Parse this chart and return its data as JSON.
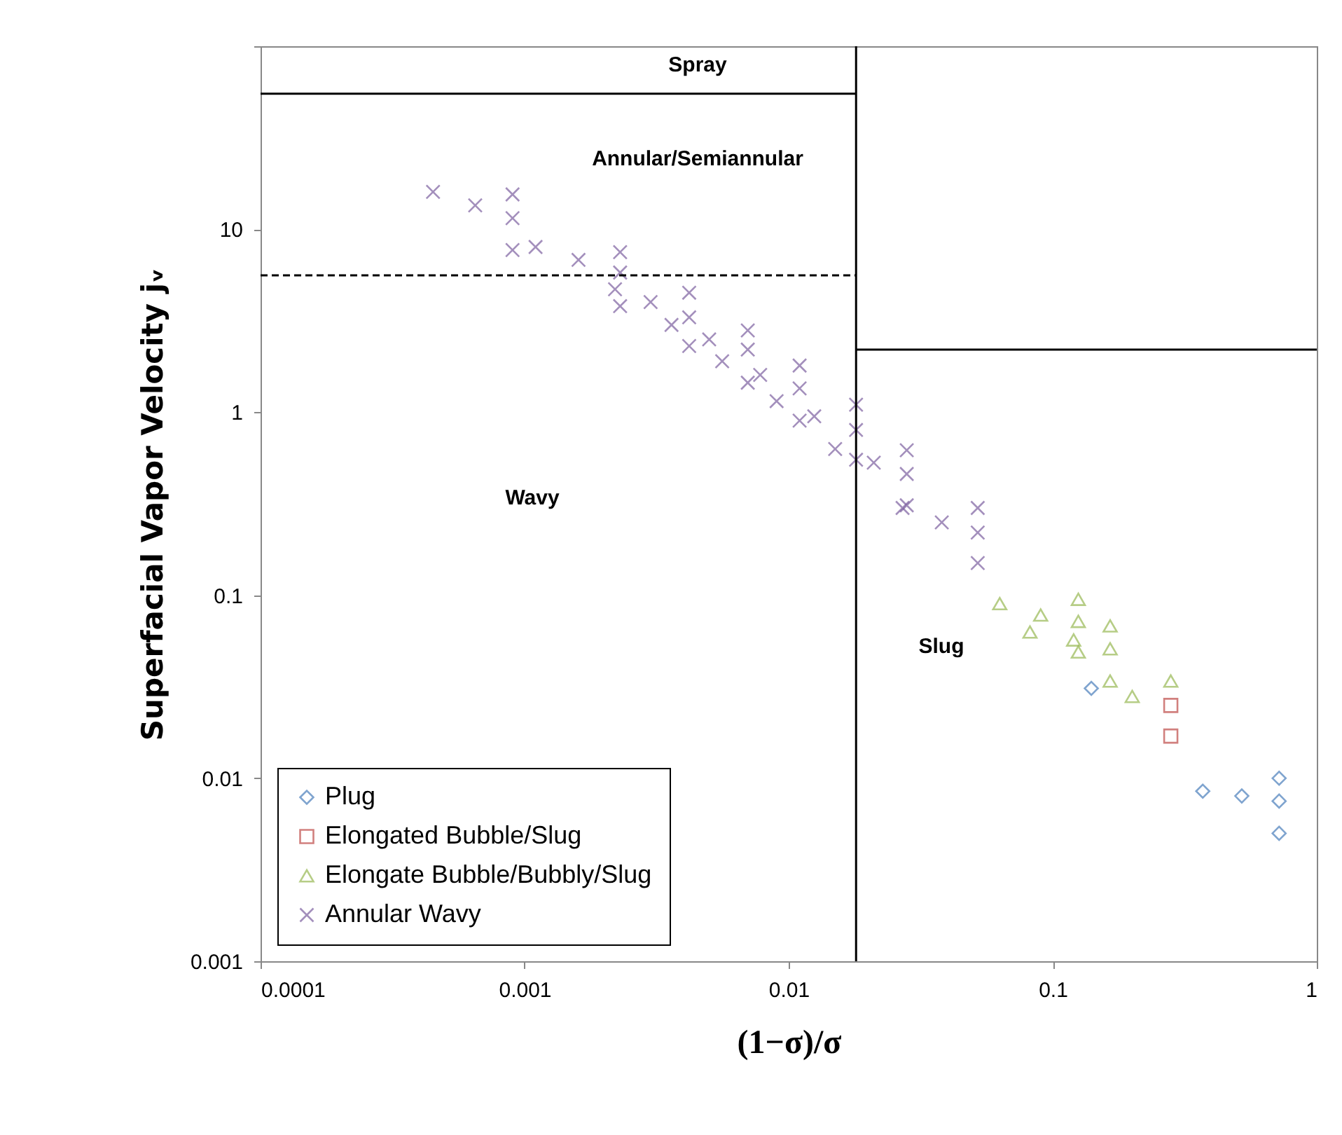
{
  "chart_data": {
    "type": "scatter",
    "xlabel": "(1−σ)/σ",
    "ylabel": "Superfacial Vapor Velocity jᵥ",
    "log": "xy",
    "xlim": [
      0.0001,
      1
    ],
    "xticks": [
      0.0001,
      0.001,
      0.01,
      0.1,
      1
    ],
    "ylim": [
      0.001,
      100
    ],
    "yticks": [
      0.001,
      0.01,
      0.1,
      1,
      10,
      {
        "value": 100,
        "label": null
      }
    ],
    "grid": false,
    "legend": "bottom left",
    "series": [
      {
        "name": "Plug",
        "color": "#4a7ebb",
        "marker": "diamond",
        "x": [
          0.14,
          0.37,
          0.52,
          0.72,
          0.72,
          0.72
        ],
        "values": [
          0.031,
          0.0085,
          0.008,
          0.01,
          0.0075,
          0.005
        ]
      },
      {
        "name": "Elongated Bubble/Slug",
        "color": "#be4b48",
        "marker": "square",
        "x": [
          0.28,
          0.28
        ],
        "values": [
          0.025,
          0.017
        ]
      },
      {
        "name": "Elongate Bubble/Bubbly/Slug",
        "color": "#98b954",
        "marker": "triangle",
        "x": [
          0.063,
          0.082,
          0.09,
          0.12,
          0.125,
          0.125,
          0.125,
          0.165,
          0.165,
          0.165,
          0.2,
          0.28
        ],
        "values": [
          0.09,
          0.063,
          0.078,
          0.057,
          0.095,
          0.072,
          0.049,
          0.068,
          0.051,
          0.034,
          0.028,
          0.034
        ]
      },
      {
        "name": "Annular Wavy",
        "color": "#7d60a0",
        "marker": "cross",
        "x": [
          0.00045,
          0.00065,
          0.0009,
          0.0009,
          0.0009,
          0.0011,
          0.0016,
          0.0022,
          0.0023,
          0.0023,
          0.0023,
          0.003,
          0.0036,
          0.0042,
          0.0042,
          0.0042,
          0.005,
          0.0056,
          0.007,
          0.007,
          0.007,
          0.0078,
          0.009,
          0.011,
          0.011,
          0.011,
          0.0125,
          0.015,
          0.018,
          0.018,
          0.018,
          0.021,
          0.027,
          0.028,
          0.028,
          0.028,
          0.038,
          0.052,
          0.052,
          0.052
        ],
        "values": [
          16,
          13.5,
          15.5,
          11.5,
          7.7,
          8,
          6.8,
          4.7,
          7.5,
          5.8,
          3.8,
          4,
          3,
          4.5,
          3.3,
          2.3,
          2.5,
          1.9,
          2.8,
          2.2,
          1.45,
          1.6,
          1.15,
          1.8,
          1.35,
          0.9,
          0.95,
          0.63,
          1.1,
          0.8,
          0.55,
          0.53,
          0.3,
          0.62,
          0.46,
          0.31,
          0.25,
          0.3,
          0.22,
          0.15
        ]
      },
      {
        "type": "line",
        "color": "#000000",
        "line_style": "solid",
        "x": [
          0.0001,
          0.018
        ],
        "values": [
          55,
          55
        ]
      },
      {
        "type": "line",
        "color": "#000000",
        "line_style": "dashed",
        "x": [
          0.0001,
          0.018
        ],
        "values": [
          5.6,
          5.6
        ]
      },
      {
        "type": "line",
        "color": "#000000",
        "line_style": "solid",
        "x": [
          0.018,
          1
        ],
        "values": [
          2.2,
          2.2
        ]
      }
    ],
    "ref_lines": [
      {
        "axis": "x",
        "value": 0.018,
        "color": "#000000",
        "line_style": "solid"
      }
    ],
    "annotations": [
      "Spray",
      "Annular/Semiannular",
      "Wavy",
      "Slug"
    ]
  }
}
